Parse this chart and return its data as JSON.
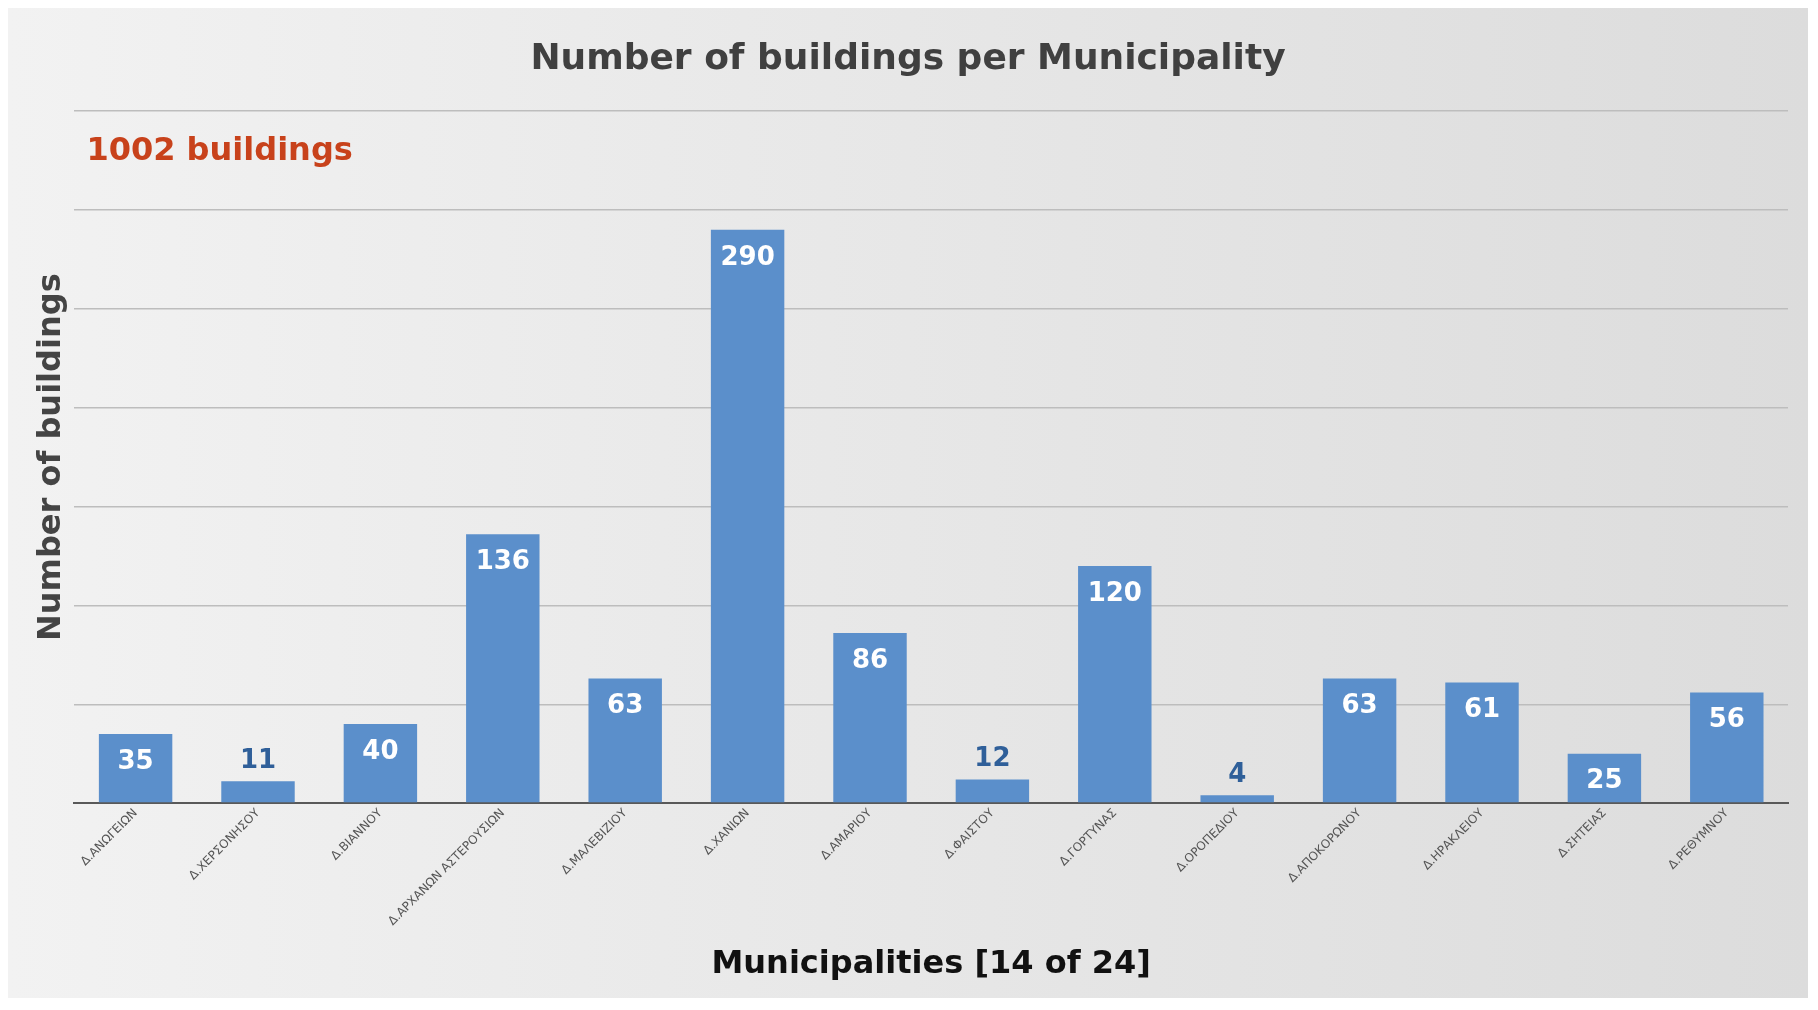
{
  "chart_data": {
    "type": "bar",
    "title": "Number of buildings per Municipality",
    "xlabel": "Municipalities [14 of 24]",
    "ylabel": "Number of buildings",
    "annotations": [
      "1002 buildings"
    ],
    "categories": [
      "Δ.ΑΝΩΓΕΙΩΝ",
      "Δ.ΧΕΡΣΟΝΗΣΟΥ",
      "Δ.ΒΙΑΝΝΟΥ",
      "Δ.ΑΡΧΑΝΩΝ ΑΣΤΕΡΟΥΣΙΩΝ",
      "Δ.ΜΑΛΕΒΙΖΙΟΥ",
      "Δ.ΧΑΝΙΩΝ",
      "Δ.ΑΜΑΡΙΟΥ",
      "Δ.ΦΑΙΣΤΟΥ",
      "Δ.ΓΟΡΤΥΝΑΣ",
      "Δ.ΟΡΟΠΕΔΙΟΥ",
      "Δ.ΑΠΟΚΟΡΩΝΟΥ",
      "Δ.ΗΡΑΚΛΕΙΟΥ",
      "Δ.ΣΗΤΕΙΑΣ",
      "Δ.ΡΕΘΥΜΝΟΥ"
    ],
    "values": [
      35,
      11,
      40,
      136,
      63,
      290,
      86,
      12,
      120,
      4,
      63,
      61,
      25,
      56
    ],
    "color": "#5b8fcb",
    "ylim": [
      0,
      350
    ],
    "yticks": [
      {
        "value": 0,
        "label": null
      },
      {
        "value": 50,
        "label": null
      },
      {
        "value": 100,
        "label": null
      },
      {
        "value": 150,
        "label": null
      },
      {
        "value": 200,
        "label": null
      },
      {
        "value": 250,
        "label": null
      },
      {
        "value": 300,
        "label": null
      },
      {
        "value": 350,
        "label": null
      }
    ],
    "tick_labels": "x",
    "grid": "y",
    "data_labels": true
  }
}
